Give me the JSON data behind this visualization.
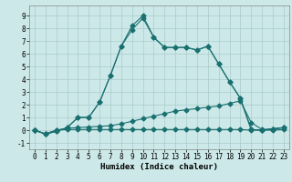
{
  "xlabel": "Humidex (Indice chaleur)",
  "bg_color": "#cce8e8",
  "grid_color": "#aacccc",
  "line_color": "#1a7070",
  "xlim": [
    -0.5,
    23.5
  ],
  "ylim": [
    -1.5,
    9.8
  ],
  "yticks": [
    -1,
    0,
    1,
    2,
    3,
    4,
    5,
    6,
    7,
    8,
    9
  ],
  "xticks": [
    0,
    1,
    2,
    3,
    4,
    5,
    6,
    7,
    8,
    9,
    10,
    11,
    12,
    13,
    14,
    15,
    16,
    17,
    18,
    19,
    20,
    21,
    22,
    23
  ],
  "line_peak_x": [
    0,
    1,
    2,
    3,
    4,
    5,
    6,
    7,
    8,
    9,
    10,
    11,
    12,
    13,
    14,
    15,
    16,
    17,
    18,
    19,
    20,
    21,
    22,
    23
  ],
  "line_peak_y": [
    0.0,
    -0.3,
    -0.1,
    0.2,
    1.0,
    1.0,
    2.2,
    4.3,
    6.6,
    8.2,
    9.0,
    7.3,
    6.5,
    6.5,
    6.5,
    6.3,
    6.6,
    5.2,
    3.8,
    2.5,
    0.05,
    0.0,
    0.1,
    0.2
  ],
  "line_peak2_x": [
    0,
    1,
    2,
    3,
    4,
    5,
    6,
    7,
    8,
    9,
    10,
    11,
    12,
    13,
    14,
    15,
    16,
    17,
    18,
    19,
    20,
    21,
    22,
    23
  ],
  "line_peak2_y": [
    0.0,
    -0.3,
    -0.1,
    0.2,
    1.0,
    1.0,
    2.2,
    4.3,
    6.6,
    7.9,
    8.8,
    7.3,
    6.5,
    6.5,
    6.5,
    6.3,
    6.6,
    5.2,
    3.8,
    2.5,
    0.05,
    0.0,
    0.1,
    0.2
  ],
  "line_mid_x": [
    0,
    1,
    2,
    3,
    4,
    5,
    6,
    7,
    8,
    9,
    10,
    11,
    12,
    13,
    14,
    15,
    16,
    17,
    18,
    19,
    20,
    21,
    22,
    23
  ],
  "line_mid_y": [
    0.0,
    -0.3,
    0.0,
    0.15,
    0.2,
    0.25,
    0.3,
    0.35,
    0.5,
    0.7,
    0.9,
    1.1,
    1.3,
    1.5,
    1.6,
    1.7,
    1.8,
    1.9,
    2.1,
    2.3,
    0.6,
    0.05,
    0.1,
    0.2
  ],
  "line_flat_x": [
    0,
    1,
    2,
    3,
    4,
    5,
    6,
    7,
    8,
    9,
    10,
    11,
    12,
    13,
    14,
    15,
    16,
    17,
    18,
    19,
    20,
    21,
    22,
    23
  ],
  "line_flat_y": [
    0.0,
    -0.3,
    0.0,
    0.05,
    0.05,
    0.05,
    0.05,
    0.05,
    0.05,
    0.05,
    0.05,
    0.05,
    0.05,
    0.05,
    0.05,
    0.05,
    0.05,
    0.05,
    0.05,
    0.05,
    0.0,
    0.0,
    0.0,
    0.05
  ],
  "markersize": 2.5,
  "linewidth": 0.8,
  "tick_fontsize": 5.5,
  "xlabel_fontsize": 6.5
}
